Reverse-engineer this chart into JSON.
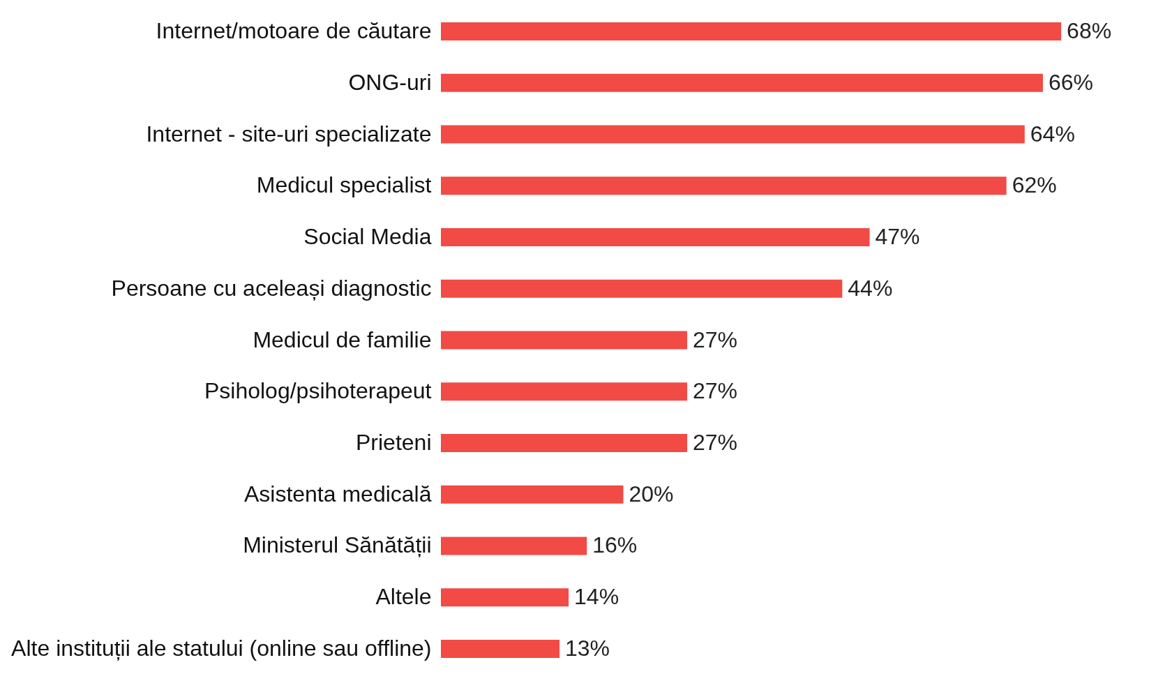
{
  "chart_data": {
    "type": "bar",
    "orientation": "horizontal",
    "tick_labels": "y",
    "categories": [
      "Internet/motoare de căutare",
      "ONG-uri",
      "Internet - site-uri specializate",
      "Medicul specialist",
      "Social Media",
      "Persoane cu aceleași diagnostic",
      "Medicul de familie",
      "Psiholog/psihoterapeut",
      "Prieteni",
      "Asistenta medicală",
      "Ministerul Sănătății",
      "Altele",
      "Alte instituții ale statului (online sau offline)"
    ],
    "values": [
      68,
      66,
      64,
      62,
      47,
      44,
      27,
      27,
      27,
      20,
      16,
      14,
      13
    ],
    "value_labels": [
      "68%",
      "66%",
      "64%",
      "62%",
      "47%",
      "44%",
      "27%",
      "27%",
      "27%",
      "20%",
      "16%",
      "14%",
      "13%"
    ],
    "color": "#f24a45"
  }
}
